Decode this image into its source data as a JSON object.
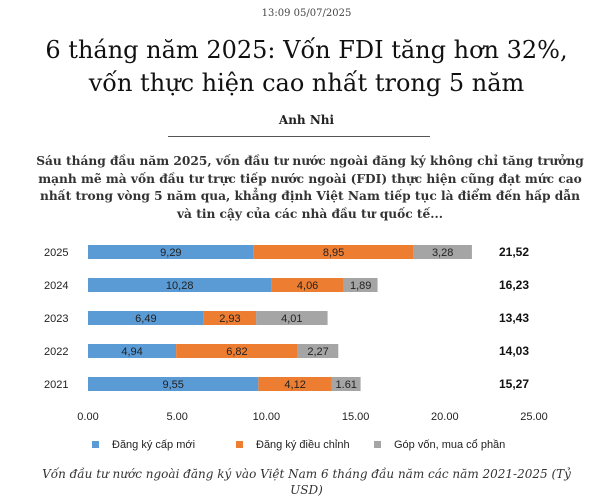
{
  "article": {
    "timestamp": "13:09 05/07/2025",
    "headline": "6 tháng năm 2025: Vốn FDI tăng hơn 32%, vốn thực hiện cao nhất trong 5 năm",
    "author": "Anh Nhi",
    "sapo": "Sáu tháng đầu năm 2025, vốn đầu tư nước ngoài đăng ký không chỉ tăng trưởng mạnh mẽ mà vốn đầu tư trực tiếp nước ngoài (FDI) thực hiện cũng đạt mức cao nhất trong vòng 5 năm qua, khẳng định Việt Nam tiếp tục là điểm đến hấp dẫn và tin cậy của các nhà đầu tư quốc tế...",
    "caption": "Vốn đầu tư nước ngoài đăng ký vào Việt Nam 6 tháng đầu năm các năm 2021-2025 (Tỷ USD)"
  },
  "chart_data": {
    "type": "bar",
    "orientation": "horizontal",
    "stacked": true,
    "categories": [
      "2025",
      "2024",
      "2023",
      "2022",
      "2021"
    ],
    "series": [
      {
        "name": "Đăng ký cấp mới",
        "color": "#5b9bd5",
        "values": [
          9.29,
          10.28,
          6.49,
          4.94,
          9.55
        ],
        "labels": [
          "9,29",
          "10,28",
          "6,49",
          "4,94",
          "9,55"
        ]
      },
      {
        "name": "Đăng ký điều chỉnh",
        "color": "#ed7d31",
        "values": [
          8.95,
          4.06,
          2.93,
          6.82,
          4.12
        ],
        "labels": [
          "8,95",
          "4,06",
          "2,93",
          "6,82",
          "4,12"
        ]
      },
      {
        "name": "Góp vốn, mua cổ phần",
        "color": "#a5a5a5",
        "values": [
          3.28,
          1.89,
          4.01,
          2.27,
          1.61
        ],
        "labels": [
          "3,28",
          "1,89",
          "4,01",
          "2,27",
          "1.61"
        ]
      }
    ],
    "totals": [
      "21,52",
      "16,23",
      "13,43",
      "14,03",
      "15,27"
    ],
    "xlim": [
      0,
      25
    ],
    "xticks": [
      0,
      5,
      10,
      15,
      20,
      25
    ],
    "xtick_labels": [
      "0.00",
      "5.00",
      "10.00",
      "15.00",
      "20.00",
      "25.00"
    ],
    "legend": "bottom",
    "grid": false,
    "title": "",
    "xlabel": "",
    "ylabel": ""
  }
}
